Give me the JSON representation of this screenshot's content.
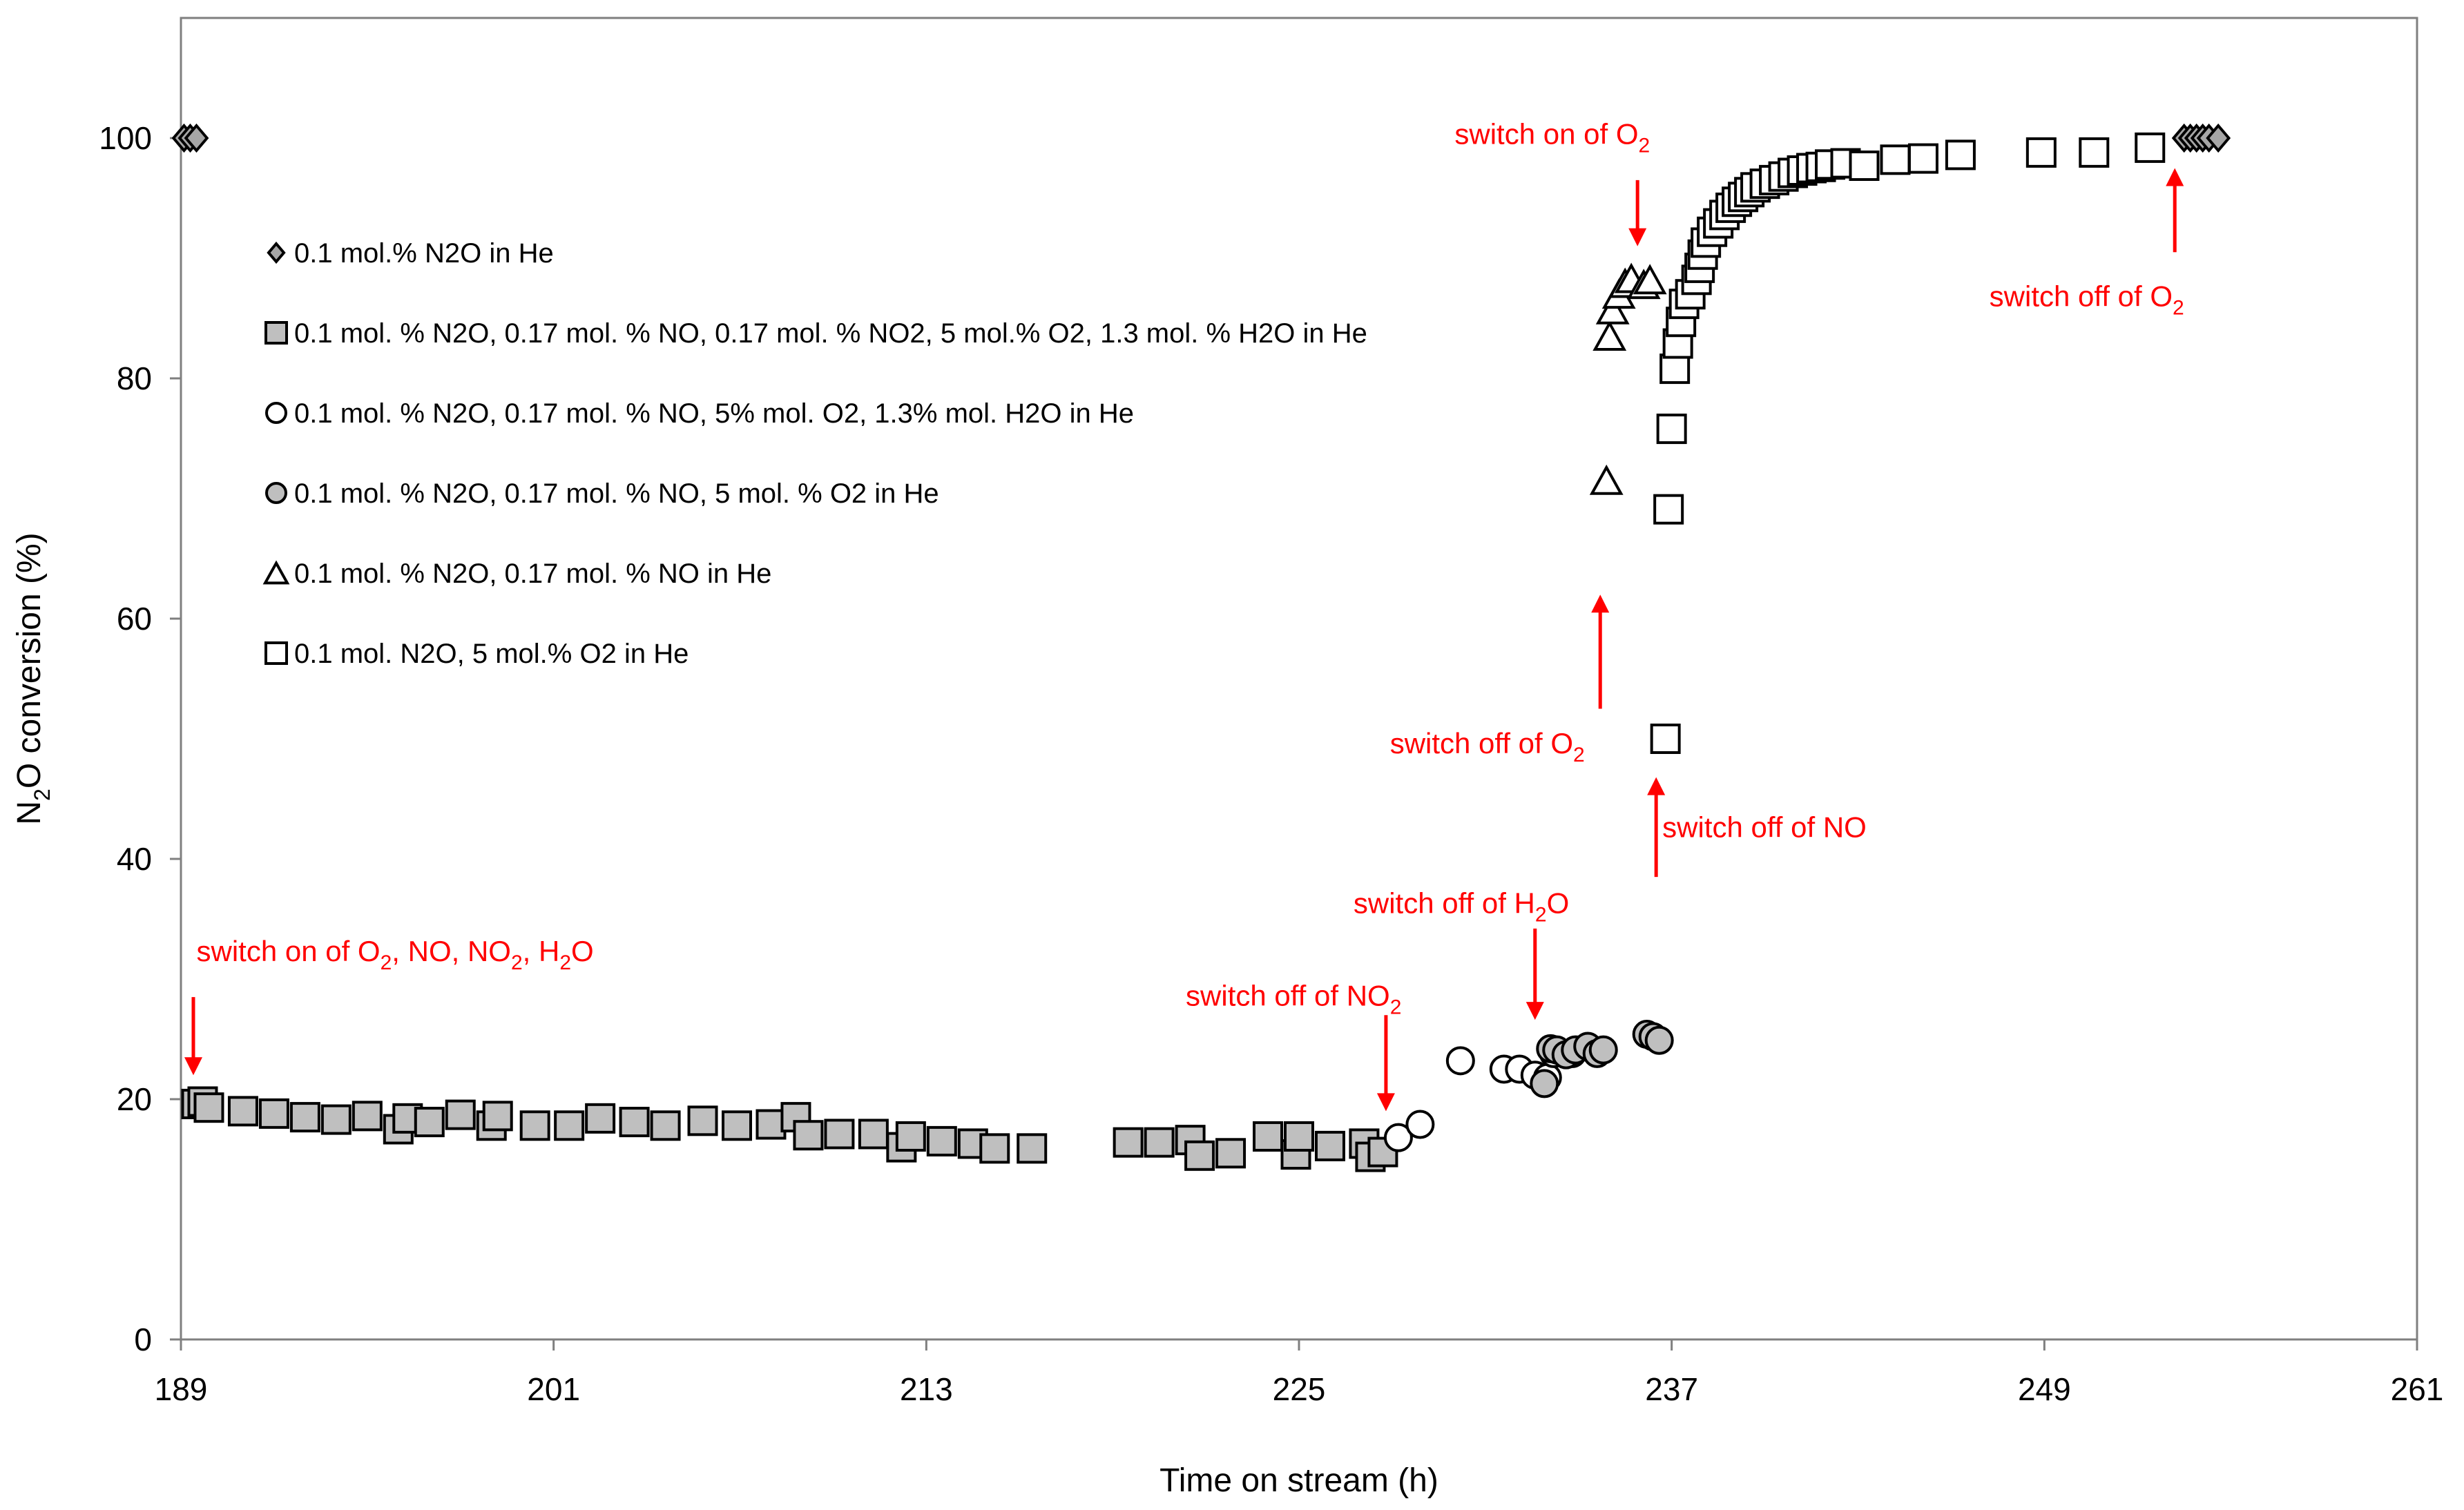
{
  "chart_data": {
    "type": "scatter",
    "xlabel": "Time on stream (h)",
    "ylabel_parts": [
      "N",
      "2",
      "O conversion (%)"
    ],
    "xlim": [
      189,
      261
    ],
    "ylim": [
      0,
      110
    ],
    "x_ticks": [
      189,
      201,
      213,
      225,
      237,
      249,
      261
    ],
    "y_ticks": [
      0,
      20,
      40,
      60,
      80,
      100
    ],
    "colors": {
      "red": "#ff0000",
      "grey_fill": "#bfbfbf",
      "mid_grey": "#a6a6a6",
      "black": "#000000"
    },
    "series": [
      {
        "name": "0.1 mol.% N2O in He",
        "marker": "diamond",
        "fill": "#a6a6a6",
        "points": [
          [
            189.1,
            100
          ],
          [
            189.3,
            100
          ],
          [
            189.5,
            100
          ],
          [
            253.5,
            100
          ],
          [
            253.7,
            100
          ],
          [
            253.9,
            100
          ],
          [
            254.1,
            100
          ],
          [
            254.3,
            100
          ],
          [
            254.6,
            100
          ]
        ]
      },
      {
        "name": "0.1 mol. % N2O, 0.17 mol. % NO, 0.17 mol. % NO2, 5 mol.% O2, 1.3 mol. % H2O in He",
        "marker": "square",
        "fill": "#bfbfbf",
        "points": [
          [
            189.5,
            19.6
          ],
          [
            189.7,
            19.8
          ],
          [
            189.9,
            19.3
          ],
          [
            191,
            19.0
          ],
          [
            192,
            18.8
          ],
          [
            193,
            18.5
          ],
          [
            194,
            18.3
          ],
          [
            195,
            18.6
          ],
          [
            196,
            17.5
          ],
          [
            196.3,
            18.4
          ],
          [
            197,
            18.1
          ],
          [
            198,
            18.7
          ],
          [
            199,
            17.8
          ],
          [
            199.2,
            18.6
          ],
          [
            200.4,
            17.8
          ],
          [
            201.5,
            17.8
          ],
          [
            202.5,
            18.4
          ],
          [
            203.6,
            18.1
          ],
          [
            204.6,
            17.8
          ],
          [
            205.8,
            18.2
          ],
          [
            206.9,
            17.8
          ],
          [
            208,
            17.9
          ],
          [
            208.8,
            18.5
          ],
          [
            209.2,
            17.0
          ],
          [
            210.2,
            17.1
          ],
          [
            211.3,
            17.1
          ],
          [
            212.2,
            16.0
          ],
          [
            212.5,
            16.9
          ],
          [
            213.5,
            16.5
          ],
          [
            214.5,
            16.3
          ],
          [
            215.2,
            15.9
          ],
          [
            216.4,
            15.9
          ],
          [
            219.5,
            16.4
          ],
          [
            220.5,
            16.4
          ],
          [
            221.5,
            16.6
          ],
          [
            221.8,
            15.3
          ],
          [
            222.8,
            15.5
          ],
          [
            224,
            16.9
          ],
          [
            224.9,
            15.4
          ],
          [
            225,
            16.9
          ],
          [
            226,
            16.1
          ],
          [
            227.1,
            16.3
          ],
          [
            227.3,
            15.2
          ],
          [
            227.7,
            15.6
          ]
        ]
      },
      {
        "name": "0.1 mol. % N2O, 0.17 mol. % NO, 5% mol. O2, 1.3% mol. H2O in He",
        "marker": "circle",
        "fill": "#ffffff",
        "points": [
          [
            228.2,
            16.8
          ],
          [
            228.9,
            17.9
          ],
          [
            230.2,
            23.2
          ],
          [
            231.6,
            22.5
          ],
          [
            232.1,
            22.5
          ],
          [
            232.6,
            22.0
          ],
          [
            233.0,
            21.8
          ],
          [
            233.2,
            23.8
          ],
          [
            233.8,
            23.8
          ]
        ]
      },
      {
        "name": "0.1 mol. % N2O, 0.17 mol. % NO, 5 mol. % O2 in He",
        "marker": "circle",
        "fill": "#bfbfbf",
        "points": [
          [
            232.9,
            21.3
          ],
          [
            233.1,
            24.2
          ],
          [
            233.3,
            24.1
          ],
          [
            233.6,
            23.7
          ],
          [
            233.9,
            24.1
          ],
          [
            234.3,
            24.4
          ],
          [
            234.6,
            23.8
          ],
          [
            234.8,
            24.1
          ],
          [
            236.2,
            25.4
          ],
          [
            236.4,
            25.2
          ],
          [
            236.6,
            24.9
          ]
        ]
      },
      {
        "name": "0.1 mol. % N2O, 0.17 mol. % NO in He",
        "marker": "triangle",
        "fill": "#ffffff",
        "points": [
          [
            234.9,
            71.5
          ],
          [
            235.0,
            83.5
          ],
          [
            235.1,
            85.7
          ],
          [
            235.3,
            87.0
          ],
          [
            235.5,
            87.9
          ],
          [
            235.7,
            88.3
          ],
          [
            236.1,
            87.8
          ],
          [
            236.3,
            88.2
          ]
        ]
      },
      {
        "name": "0.1 mol. N2O, 5 mol.% O2 in He",
        "marker": "square",
        "fill": "#ffffff",
        "points": [
          [
            236.8,
            50.0
          ],
          [
            236.9,
            69.1
          ],
          [
            237.0,
            75.8
          ],
          [
            237.1,
            80.8
          ],
          [
            237.2,
            82.9
          ],
          [
            237.3,
            84.7
          ],
          [
            237.4,
            86.2
          ],
          [
            237.6,
            87.0
          ],
          [
            237.8,
            88.2
          ],
          [
            237.9,
            89.2
          ],
          [
            238.0,
            90.3
          ],
          [
            238.1,
            91.3
          ],
          [
            238.3,
            92.2
          ],
          [
            238.5,
            92.9
          ],
          [
            238.7,
            93.6
          ],
          [
            238.9,
            94.2
          ],
          [
            239.1,
            94.7
          ],
          [
            239.3,
            95.1
          ],
          [
            239.5,
            95.5
          ],
          [
            239.7,
            95.9
          ],
          [
            240.0,
            96.2
          ],
          [
            240.3,
            96.5
          ],
          [
            240.6,
            96.8
          ],
          [
            240.9,
            97.1
          ],
          [
            241.2,
            97.3
          ],
          [
            241.5,
            97.5
          ],
          [
            241.8,
            97.6
          ],
          [
            242.1,
            97.8
          ],
          [
            242.6,
            97.9
          ],
          [
            243.2,
            97.7
          ],
          [
            244.2,
            98.2
          ],
          [
            245.1,
            98.3
          ],
          [
            246.3,
            98.6
          ],
          [
            248.9,
            98.8
          ],
          [
            250.6,
            98.8
          ],
          [
            252.4,
            99.2
          ]
        ]
      }
    ],
    "legend": {
      "placement": "left",
      "entries": [
        {
          "marker": "diamond",
          "fill": "#a6a6a6",
          "label": "0.1 mol.% N2O in He"
        },
        {
          "marker": "square",
          "fill": "#bfbfbf",
          "label": "0.1 mol. % N2O, 0.17 mol. % NO, 0.17 mol. % NO2, 5 mol.% O2, 1.3 mol. % H2O in He"
        },
        {
          "marker": "circle",
          "fill": "#ffffff",
          "label": "0.1 mol. % N2O, 0.17 mol. % NO, 5% mol. O2, 1.3% mol. H2O in He"
        },
        {
          "marker": "circle",
          "fill": "#bfbfbf",
          "label": "0.1 mol. % N2O, 0.17 mol. % NO, 5 mol. % O2 in He"
        },
        {
          "marker": "triangle",
          "fill": "#ffffff",
          "label": "0.1 mol. % N2O, 0.17 mol. % NO in He"
        },
        {
          "marker": "square",
          "fill": "#ffffff",
          "label": "0.1 mol. N2O, 5 mol.% O2 in He"
        }
      ]
    },
    "annotations": [
      {
        "id": "on-all",
        "parts": [
          [
            "switch on of O",
            ""
          ],
          [
            "2",
            "sub"
          ],
          [
            ", NO, NO",
            ""
          ],
          [
            "2",
            "sub"
          ],
          [
            ", H",
            ""
          ],
          [
            "2",
            "sub"
          ],
          [
            "O",
            ""
          ]
        ],
        "text_at": [
          189.5,
          31.5
        ],
        "text_anchor": "start",
        "arrow": [
          189.4,
          28.5,
          189.4,
          22.0
        ]
      },
      {
        "id": "off-no2",
        "parts": [
          [
            "switch off of NO",
            ""
          ],
          [
            "2",
            "sub"
          ]
        ],
        "text_at": [
          228.3,
          27.8
        ],
        "text_anchor": "end",
        "arrow": [
          227.8,
          27.0,
          227.8,
          19.0
        ]
      },
      {
        "id": "off-h2o",
        "parts": [
          [
            "switch off of H",
            ""
          ],
          [
            "2",
            "sub"
          ],
          [
            "O",
            ""
          ]
        ],
        "text_at": [
          233.7,
          35.5
        ],
        "text_anchor": "end",
        "arrow": [
          232.6,
          34.2,
          232.6,
          26.6
        ]
      },
      {
        "id": "off-no",
        "parts": [
          [
            "switch off of NO",
            ""
          ]
        ],
        "text_at": [
          236.7,
          41.8
        ],
        "text_anchor": "start",
        "arrow": [
          236.5,
          38.5,
          236.5,
          46.8
        ]
      },
      {
        "id": "off-o2-mid",
        "parts": [
          [
            "switch off of  O",
            ""
          ],
          [
            "2",
            "sub"
          ]
        ],
        "text_at": [
          234.2,
          48.8
        ],
        "text_anchor": "end",
        "arrow": [
          234.7,
          52.5,
          234.7,
          62.0
        ]
      },
      {
        "id": "on-o2",
        "parts": [
          [
            "switch on of  O",
            ""
          ],
          [
            "2",
            "sub"
          ]
        ],
        "text_at": [
          236.3,
          99.5
        ],
        "text_anchor": "end",
        "arrow": [
          235.9,
          96.5,
          235.9,
          91.0
        ]
      },
      {
        "id": "off-o2-end",
        "parts": [
          [
            "switch off of O",
            ""
          ],
          [
            "2",
            "sub"
          ]
        ],
        "text_at": [
          253.5,
          86.0
        ],
        "text_anchor": "end",
        "arrow": [
          253.2,
          90.5,
          253.2,
          97.5
        ]
      }
    ]
  }
}
